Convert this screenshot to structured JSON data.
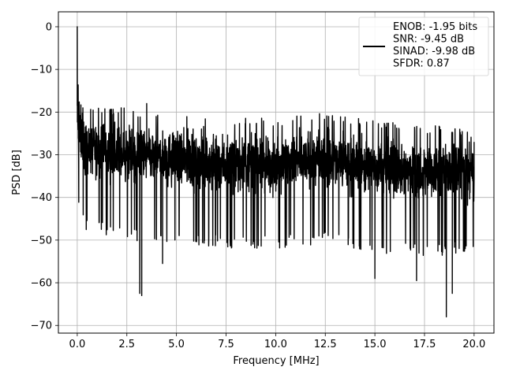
{
  "chart_data": {
    "type": "line",
    "title": "",
    "xlabel": "Frequency [MHz]",
    "ylabel": "PSD [dB]",
    "xlim": [
      -0.95,
      21.0
    ],
    "ylim": [
      -71.8,
      3.5
    ],
    "grid": true,
    "x_ticks": [
      0.0,
      2.5,
      5.0,
      7.5,
      10.0,
      12.5,
      15.0,
      17.5,
      20.0
    ],
    "x_tick_labels": [
      "0.0",
      "2.5",
      "5.0",
      "7.5",
      "10.0",
      "12.5",
      "15.0",
      "17.5",
      "20.0"
    ],
    "y_ticks": [
      0,
      -10,
      -20,
      -30,
      -40,
      -50,
      -60,
      -70
    ],
    "y_tick_labels": [
      "0",
      "−10",
      "−20",
      "−30",
      "−40",
      "−50",
      "−60",
      "−70"
    ],
    "legend": {
      "placement": "top-right",
      "entries": [
        "ENOB: -1.95 bits",
        "SNR: -9.45 dB",
        "SINAD: -9.98 dB",
        "SFDR: 0.87"
      ]
    },
    "series": [
      {
        "color": "#000000",
        "x_range": [
          0.0,
          20.0
        ],
        "peak_points": [
          {
            "x": 0.0,
            "y": 0.0
          },
          {
            "x": 0.03,
            "y": -14.0
          },
          {
            "x": 0.08,
            "y": -18.0
          },
          {
            "x": 3.15,
            "y": -62.5
          },
          {
            "x": 3.25,
            "y": -63.0
          },
          {
            "x": 3.5,
            "y": -18.0
          },
          {
            "x": 4.3,
            "y": -55.5
          },
          {
            "x": 15.0,
            "y": -59.0
          },
          {
            "x": 17.1,
            "y": -59.5
          },
          {
            "x": 18.6,
            "y": -68.0
          },
          {
            "x": 18.9,
            "y": -62.5
          },
          {
            "x": 20.0,
            "y": -27.0
          }
        ],
        "envelope": [
          {
            "x": 0.5,
            "upper": -20.0,
            "lower": -45.0
          },
          {
            "x": 2.5,
            "upper": -21.0,
            "lower": -47.0
          },
          {
            "x": 5.0,
            "upper": -22.0,
            "lower": -48.0
          },
          {
            "x": 7.5,
            "upper": -23.0,
            "lower": -49.0
          },
          {
            "x": 10.0,
            "upper": -23.5,
            "lower": -49.0
          },
          {
            "x": 12.5,
            "upper": -22.0,
            "lower": -48.0
          },
          {
            "x": 15.0,
            "upper": -24.0,
            "lower": -50.0
          },
          {
            "x": 17.5,
            "upper": -25.0,
            "lower": -51.0
          },
          {
            "x": 20.0,
            "upper": -26.0,
            "lower": -50.0
          }
        ]
      }
    ]
  }
}
